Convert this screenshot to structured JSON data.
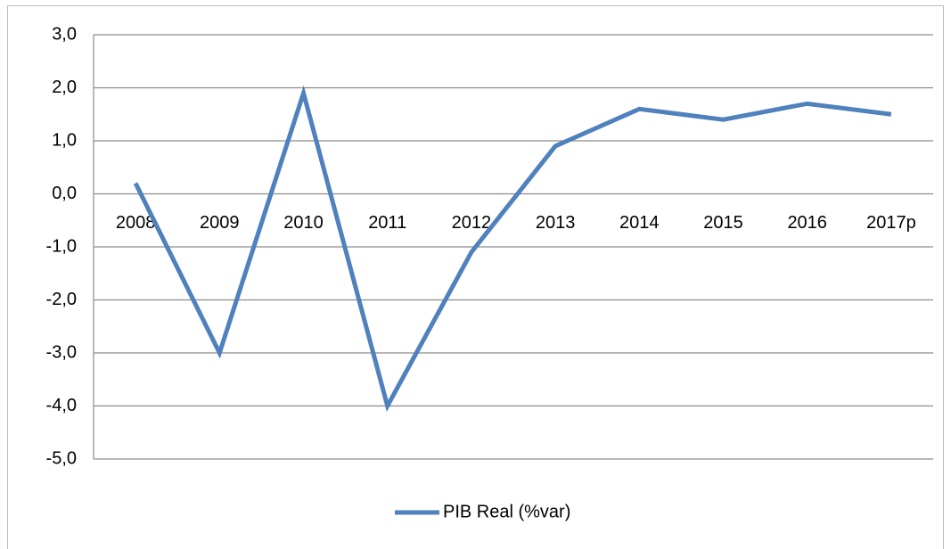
{
  "chart_data": {
    "type": "line",
    "categories": [
      "2008",
      "2009",
      "2010",
      "2011",
      "2012",
      "2013",
      "2014",
      "2015",
      "2016",
      "2017p"
    ],
    "series": [
      {
        "name": "PIB Real (%var)",
        "color": "#4f81bd",
        "values": [
          0.2,
          -3.0,
          1.9,
          -4.0,
          -1.1,
          0.9,
          1.6,
          1.4,
          1.7,
          1.5
        ]
      }
    ],
    "ylim": [
      -5,
      3
    ],
    "yticks": [
      {
        "value": -5,
        "label": "-5,0"
      },
      {
        "value": -4,
        "label": "-4,0"
      },
      {
        "value": -3,
        "label": "-3,0"
      },
      {
        "value": -2,
        "label": "-2,0"
      },
      {
        "value": -1,
        "label": "-1,0"
      },
      {
        "value": 0,
        "label": "0,0"
      },
      {
        "value": 1,
        "label": "1,0"
      },
      {
        "value": 2,
        "label": "2,0"
      },
      {
        "value": 3,
        "label": "3,0"
      }
    ],
    "grid": true,
    "legend": "bottom"
  }
}
